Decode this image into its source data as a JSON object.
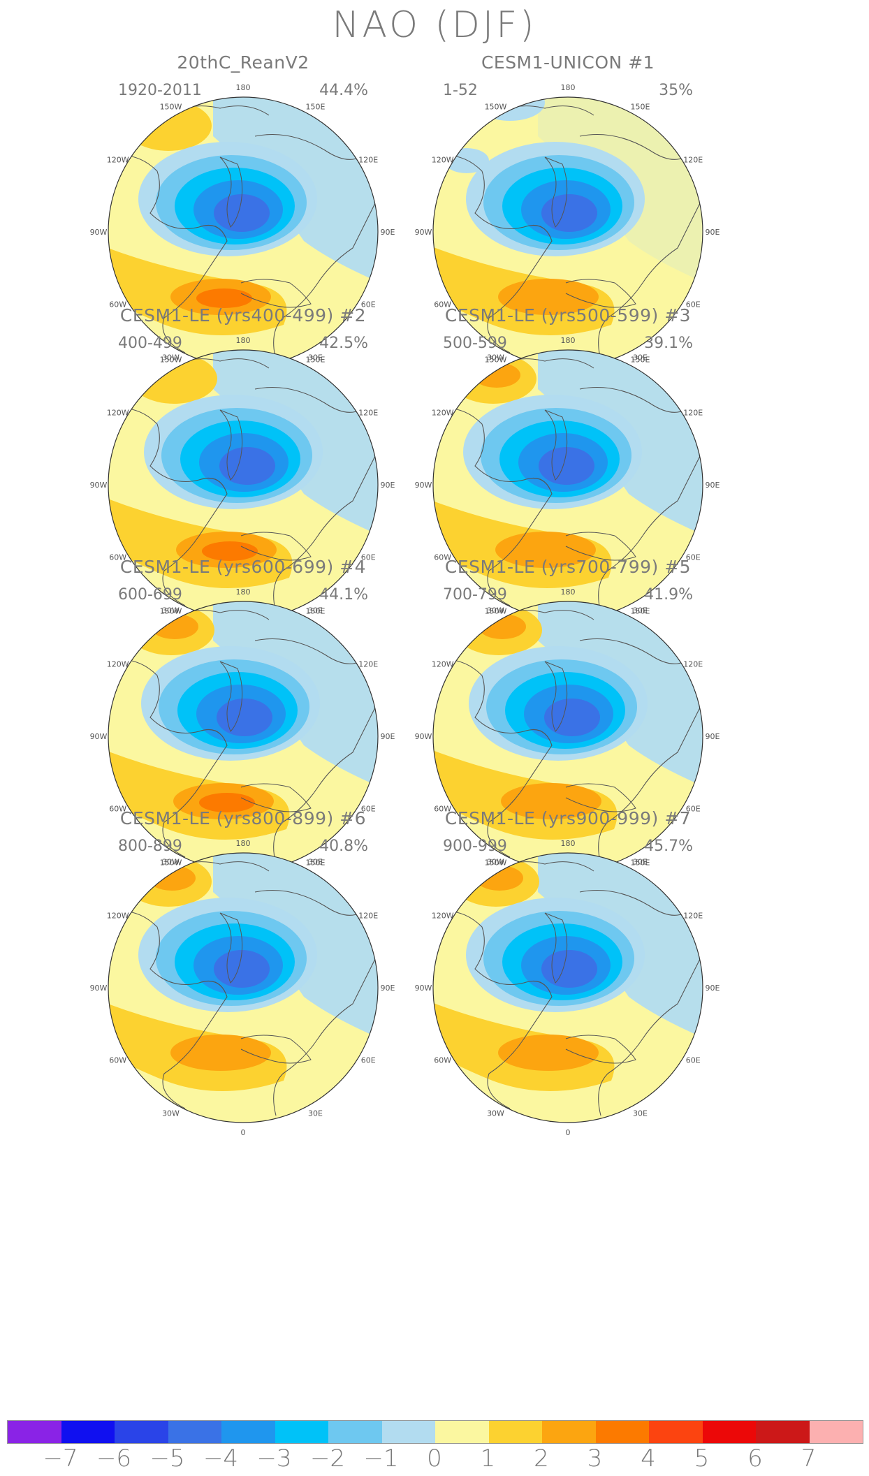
{
  "title": "NAO (DJF)",
  "panels": [
    {
      "title": "20thC_ReanV2",
      "years": "1920-2011",
      "pct": "44.4%",
      "variant": 0
    },
    {
      "title": "CESM1-UNICON        #1",
      "years": "1-52",
      "pct": "35%",
      "variant": 1
    },
    {
      "title": "CESM1-LE (yrs400-499) #2",
      "years": "400-499",
      "pct": "42.5%",
      "variant": 2
    },
    {
      "title": "CESM1-LE (yrs500-599) #3",
      "years": "500-599",
      "pct": "39.1%",
      "variant": 3
    },
    {
      "title": "CESM1-LE (yrs600-699) #4",
      "years": "600-699",
      "pct": "44.1%",
      "variant": 4
    },
    {
      "title": "CESM1-LE (yrs700-799) #5",
      "years": "700-799",
      "pct": "41.9%",
      "variant": 5
    },
    {
      "title": "CESM1-LE (yrs800-899) #6",
      "years": "800-899",
      "pct": "40.8%",
      "variant": 6
    },
    {
      "title": "CESM1-LE (yrs900-999) #7",
      "years": "900-999",
      "pct": "45.7%",
      "variant": 7
    }
  ],
  "longitude_labels": [
    "180",
    "150E",
    "120E",
    "90E",
    "60E",
    "30E",
    "0",
    "30W",
    "60W",
    "90W",
    "120W",
    "150W"
  ],
  "colorbar": {
    "labels": [
      "−7",
      "−6",
      "−5",
      "−4",
      "−3",
      "−2",
      "−1",
      "0",
      "1",
      "2",
      "3",
      "4",
      "5",
      "6",
      "7"
    ],
    "colors": [
      "#8a23e6",
      "#1010f0",
      "#2a44e8",
      "#3a72e6",
      "#1f96ee",
      "#00c2f8",
      "#6ec8f0",
      "#b2dcf0",
      "#fbf7a0",
      "#fcd230",
      "#fca510",
      "#fc7a00",
      "#fc4410",
      "#ec0808",
      "#cc1818",
      "#fcb0b0"
    ]
  }
}
